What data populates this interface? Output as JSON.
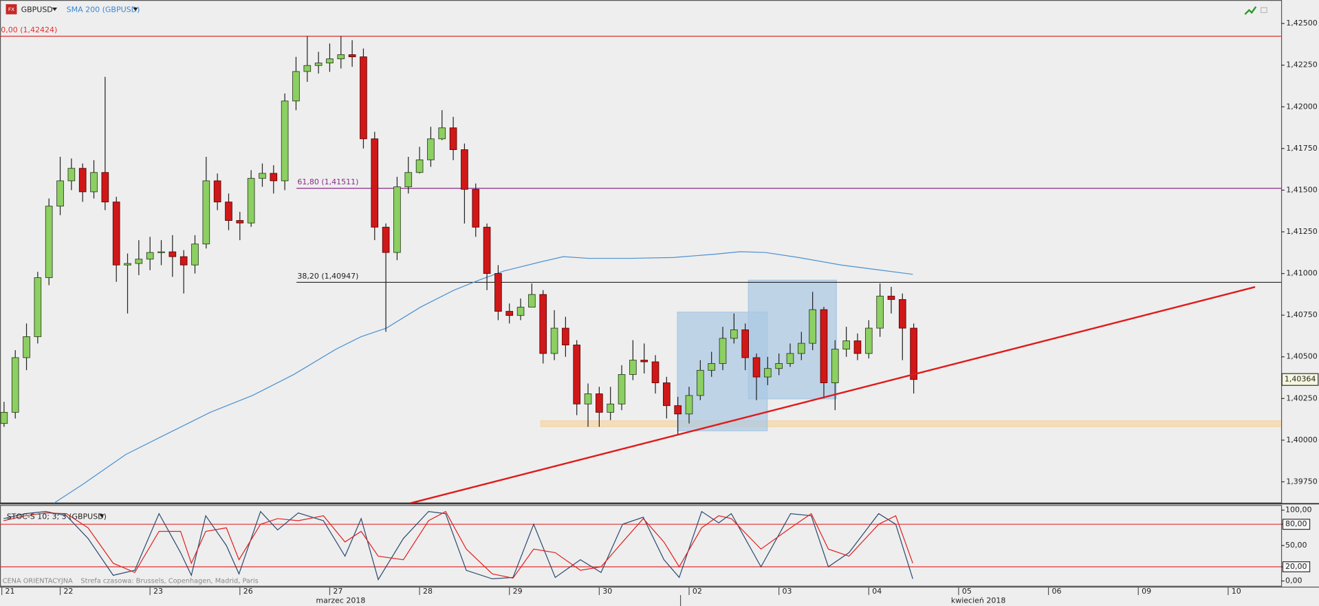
{
  "chart_data": [
    {
      "type": "candlestick",
      "symbol": "GBPUSD",
      "colors": {
        "up": "#8ccf62",
        "down": "#d01818",
        "background": "#eeeeee"
      },
      "xlim": [
        0.33,
        14.59
      ],
      "xticks": [
        {
          "value": 0.35,
          "label": "21"
        },
        {
          "value": 1,
          "label": "22"
        },
        {
          "value": 2,
          "label": "23"
        },
        {
          "value": 3,
          "label": "26"
        },
        {
          "value": 4,
          "label": "27"
        },
        {
          "value": 5,
          "label": "28"
        },
        {
          "value": 6,
          "label": "29"
        },
        {
          "value": 7,
          "label": "30"
        },
        {
          "value": 8,
          "label": "02"
        },
        {
          "value": 9,
          "label": "03"
        },
        {
          "value": 10,
          "label": "04"
        },
        {
          "value": 11,
          "label": "05"
        },
        {
          "value": 12,
          "label": "06"
        },
        {
          "value": 13,
          "label": "09"
        },
        {
          "value": 14,
          "label": "10"
        }
      ],
      "x_month_labels": [
        "marzec 2018",
        "kwiecień 2018"
      ],
      "ylim": [
        1.39621,
        1.42641
      ],
      "yticks": [
        {
          "value": 1.425,
          "label": "1,42500"
        },
        {
          "value": 1.4225,
          "label": "1,42250"
        },
        {
          "value": 1.42,
          "label": "1,42000"
        },
        {
          "value": 1.4175,
          "label": "1,41750"
        },
        {
          "value": 1.415,
          "label": "1,41500"
        },
        {
          "value": 1.4125,
          "label": "1,41250"
        },
        {
          "value": 1.41,
          "label": "1,41000"
        },
        {
          "value": 1.4075,
          "label": "1,40750"
        },
        {
          "value": 1.405,
          "label": "1,40500"
        },
        {
          "value": 1.4025,
          "label": "1,40250"
        },
        {
          "value": 1.4,
          "label": "1,40000"
        },
        {
          "value": 1.3975,
          "label": "1,39750"
        }
      ],
      "x": [
        0.375,
        0.5,
        0.625,
        0.75,
        0.875,
        1,
        1.125,
        1.25,
        1.375,
        1.5,
        1.625,
        1.75,
        1.875,
        2,
        2.125,
        2.25,
        2.375,
        2.5,
        2.625,
        2.75,
        2.875,
        3,
        3.125,
        3.25,
        3.375,
        3.5,
        3.625,
        3.75,
        3.875,
        4,
        4.125,
        4.25,
        4.375,
        4.5,
        4.625,
        4.75,
        4.875,
        5,
        5.125,
        5.25,
        5.375,
        5.5,
        5.625,
        5.75,
        5.875,
        6,
        6.125,
        6.25,
        6.375,
        6.5,
        6.625,
        6.75,
        6.875,
        7,
        7.125,
        7.25,
        7.375,
        7.5,
        7.625,
        7.75,
        7.875,
        8,
        8.125,
        8.25,
        8.375,
        8.5,
        8.625,
        8.75,
        8.875,
        9,
        9.125,
        9.25,
        9.375,
        9.5,
        9.625,
        9.75,
        9.875,
        10,
        10.125,
        10.25,
        10.375,
        10.5
      ],
      "ohlc": [
        [
          1.401,
          1.4023,
          1.4008,
          1.40167
        ],
        [
          1.40167,
          1.4054,
          1.4013,
          1.40495
        ],
        [
          1.40495,
          1.407,
          1.4042,
          1.40621
        ],
        [
          1.40621,
          1.4101,
          1.4058,
          1.40975
        ],
        [
          1.40975,
          1.4145,
          1.4093,
          1.41404
        ],
        [
          1.41404,
          1.417,
          1.4135,
          1.41556
        ],
        [
          1.41556,
          1.4169,
          1.415,
          1.41631
        ],
        [
          1.41631,
          1.4166,
          1.4143,
          1.4149
        ],
        [
          1.4149,
          1.4168,
          1.4145,
          1.41606
        ],
        [
          1.41606,
          1.4218,
          1.4138,
          1.41429
        ],
        [
          1.41429,
          1.4146,
          1.4095,
          1.41051
        ],
        [
          1.41051,
          1.4112,
          1.4076,
          1.4106
        ],
        [
          1.4106,
          1.412,
          1.4099,
          1.41086
        ],
        [
          1.41086,
          1.4122,
          1.4102,
          1.41126
        ],
        [
          1.41126,
          1.412,
          1.4105,
          1.4113
        ],
        [
          1.4113,
          1.4123,
          1.4098,
          1.41101
        ],
        [
          1.41101,
          1.4114,
          1.4088,
          1.41051
        ],
        [
          1.41051,
          1.4123,
          1.41,
          1.41177
        ],
        [
          1.41177,
          1.417,
          1.4115,
          1.41556
        ],
        [
          1.41556,
          1.416,
          1.4138,
          1.41429
        ],
        [
          1.41429,
          1.4148,
          1.4126,
          1.41318
        ],
        [
          1.41318,
          1.4137,
          1.412,
          1.41303
        ],
        [
          1.41303,
          1.4162,
          1.4128,
          1.41571
        ],
        [
          1.41571,
          1.4166,
          1.4152,
          1.41601
        ],
        [
          1.41601,
          1.4165,
          1.4148,
          1.41556
        ],
        [
          1.41556,
          1.4208,
          1.415,
          1.42035
        ],
        [
          1.42035,
          1.423,
          1.4198,
          1.42212
        ],
        [
          1.42212,
          1.42424,
          1.4215,
          1.42248
        ],
        [
          1.42248,
          1.4233,
          1.422,
          1.42263
        ],
        [
          1.42263,
          1.4238,
          1.4221,
          1.42288
        ],
        [
          1.42288,
          1.42424,
          1.4223,
          1.42313
        ],
        [
          1.42313,
          1.424,
          1.4224,
          1.423
        ],
        [
          1.423,
          1.4235,
          1.4175,
          1.41808
        ],
        [
          1.41808,
          1.4185,
          1.412,
          1.41278
        ],
        [
          1.41278,
          1.413,
          1.4065,
          1.41126
        ],
        [
          1.41126,
          1.4158,
          1.4108,
          1.4152
        ],
        [
          1.4152,
          1.417,
          1.4148,
          1.41606
        ],
        [
          1.41606,
          1.4176,
          1.416,
          1.41682
        ],
        [
          1.41682,
          1.4188,
          1.4164,
          1.41808
        ],
        [
          1.41808,
          1.4198,
          1.418,
          1.41874
        ],
        [
          1.41874,
          1.4194,
          1.4168,
          1.41743
        ],
        [
          1.41743,
          1.4178,
          1.413,
          1.41505
        ],
        [
          1.41505,
          1.4154,
          1.4122,
          1.41278
        ],
        [
          1.41278,
          1.413,
          1.409,
          1.41
        ],
        [
          1.41,
          1.4105,
          1.4072,
          1.40773
        ],
        [
          1.40773,
          1.4082,
          1.407,
          1.40748
        ],
        [
          1.40748,
          1.4085,
          1.4072,
          1.40798
        ],
        [
          1.40798,
          1.4094,
          1.4082,
          1.40874
        ],
        [
          1.40874,
          1.409,
          1.4046,
          1.4052
        ],
        [
          1.4052,
          1.4078,
          1.4048,
          1.40672
        ],
        [
          1.40672,
          1.4074,
          1.405,
          1.40571
        ],
        [
          1.40571,
          1.406,
          1.4015,
          1.40217
        ],
        [
          1.40217,
          1.4034,
          1.4008,
          1.40278
        ],
        [
          1.40278,
          1.4032,
          1.4008,
          1.40167
        ],
        [
          1.40167,
          1.4032,
          1.4012,
          1.40217
        ],
        [
          1.40217,
          1.4045,
          1.4018,
          1.40394
        ],
        [
          1.40394,
          1.406,
          1.4036,
          1.4048
        ],
        [
          1.4048,
          1.4058,
          1.404,
          1.4047
        ],
        [
          1.4047,
          1.4051,
          1.4028,
          1.40344
        ],
        [
          1.40344,
          1.4038,
          1.4013,
          1.40207
        ],
        [
          1.40207,
          1.4026,
          1.4003,
          1.40157
        ],
        [
          1.40157,
          1.4032,
          1.401,
          1.40268
        ],
        [
          1.40268,
          1.4048,
          1.4024,
          1.40419
        ],
        [
          1.40419,
          1.4053,
          1.4038,
          1.4046
        ],
        [
          1.4046,
          1.4068,
          1.4042,
          1.40611
        ],
        [
          1.40611,
          1.4076,
          1.4058,
          1.40662
        ],
        [
          1.40662,
          1.407,
          1.4042,
          1.40495
        ],
        [
          1.40495,
          1.4052,
          1.4024,
          1.40379
        ],
        [
          1.40379,
          1.405,
          1.4033,
          1.4043
        ],
        [
          1.4043,
          1.4052,
          1.4039,
          1.4046
        ],
        [
          1.4046,
          1.4058,
          1.4044,
          1.4052
        ],
        [
          1.4052,
          1.4065,
          1.4048,
          1.40581
        ],
        [
          1.40581,
          1.4089,
          1.4054,
          1.40783
        ],
        [
          1.40783,
          1.408,
          1.4025,
          1.40344
        ],
        [
          1.40344,
          1.406,
          1.4018,
          1.40546
        ],
        [
          1.40546,
          1.4068,
          1.405,
          1.40596
        ],
        [
          1.40596,
          1.4064,
          1.4048,
          1.4052
        ],
        [
          1.4052,
          1.4072,
          1.4049,
          1.40672
        ],
        [
          1.40672,
          1.4094,
          1.4062,
          1.40864
        ],
        [
          1.40864,
          1.4092,
          1.4076,
          1.40844
        ],
        [
          1.40844,
          1.4088,
          1.4048,
          1.40672
        ],
        [
          1.40672,
          1.407,
          1.4028,
          1.40364
        ]
      ],
      "overlays": [
        {
          "name": "SMA 200 (GBPUSD)",
          "color": "#4a90d0",
          "x": [
            0.93,
            1.26,
            1.73,
            2.2,
            2.67,
            3.14,
            3.6,
            4.07,
            4.35,
            4.63,
            5.01,
            5.38,
            5.66,
            5.94,
            6.32,
            6.6,
            6.88,
            7.35,
            7.82,
            8.29,
            8.57,
            8.85,
            9.22,
            9.69,
            10.06,
            10.49
          ],
          "values": [
            1.39622,
            1.39738,
            1.39914,
            1.40041,
            1.40167,
            1.40268,
            1.40394,
            1.40546,
            1.40621,
            1.40672,
            1.40798,
            1.40899,
            1.4096,
            1.41015,
            1.41066,
            1.41101,
            1.41091,
            1.41091,
            1.41096,
            1.41116,
            1.41131,
            1.41126,
            1.41096,
            1.41051,
            1.41025,
            1.40995
          ]
        }
      ],
      "levels": [
        {
          "label": "0,00 (1,42424)",
          "value": 1.42424,
          "color": "#e03030"
        },
        {
          "label": "61,80 (1,41511)",
          "value": 1.41511,
          "color": "#8a2a8a",
          "from": 3.63
        },
        {
          "label": "38,20 (1,40947)",
          "value": 1.40947,
          "color": "#222222",
          "from": 3.63
        }
      ],
      "trendline": {
        "color": "#e01a1a",
        "x": [
          4.9,
          14.3
        ],
        "values": [
          1.39622,
          1.40919
        ]
      },
      "zones": [
        {
          "color": "#f5d5a6",
          "x": [
            6.35,
            14.59
          ],
          "y": [
            1.40081,
            1.40116
          ]
        },
        {
          "color": "#a9c8e2",
          "x": [
            7.87,
            8.87
          ],
          "y": [
            1.40056,
            1.40768
          ]
        },
        {
          "color": "#a9c8e2",
          "x": [
            8.66,
            9.64
          ],
          "y": [
            1.40248,
            1.4096
          ]
        }
      ],
      "last_value": {
        "value": 1.40364,
        "label": "1,40364"
      },
      "footer": "CENA ORIENTACYJNA",
      "timezone": "Strefa czasowa: Brussels, Copenhagen, Madrid, Paris"
    },
    {
      "type": "line",
      "title": "STOC-S 10; 3; 3 (GBPUSD)",
      "xlim": [
        0.33,
        14.59
      ],
      "ylim": [
        -8,
        106
      ],
      "yticks": [
        {
          "value": 100,
          "label": "100,00"
        },
        {
          "value": 80,
          "label": "80,00"
        },
        {
          "value": 50,
          "label": "50,00"
        },
        {
          "value": 20,
          "label": "20,00"
        },
        {
          "value": 0,
          "label": "0,00"
        }
      ],
      "reference_lines": [
        80,
        20
      ],
      "reference_color": "#e03030",
      "x": [
        0.37,
        0.61,
        0.84,
        1.07,
        1.31,
        1.59,
        1.83,
        2.1,
        2.34,
        2.46,
        2.62,
        2.85,
        2.99,
        3.23,
        3.42,
        3.65,
        3.93,
        4.17,
        4.35,
        4.54,
        4.82,
        5.1,
        5.29,
        5.52,
        5.81,
        6.04,
        6.27,
        6.51,
        6.79,
        7.02,
        7.26,
        7.49,
        7.72,
        7.89,
        8.14,
        8.33,
        8.47,
        8.8,
        9.13,
        9.36,
        9.55,
        9.78,
        10.11,
        10.3,
        10.49
      ],
      "series": [
        {
          "color": "#2c4a70",
          "values": [
            88,
            95,
            98,
            92,
            60,
            8,
            15,
            95,
            40,
            8,
            92,
            50,
            10,
            98,
            72,
            96,
            85,
            35,
            88,
            2,
            60,
            98,
            95,
            15,
            3,
            5,
            80,
            5,
            30,
            12,
            80,
            90,
            30,
            5,
            98,
            82,
            95,
            20,
            95,
            92,
            20,
            40,
            95,
            80,
            3
          ]
        },
        {
          "color": "#e02020",
          "values": [
            85,
            92,
            96,
            95,
            75,
            25,
            12,
            70,
            70,
            25,
            70,
            75,
            30,
            80,
            88,
            85,
            92,
            55,
            70,
            35,
            30,
            85,
            98,
            45,
            10,
            4,
            45,
            40,
            15,
            20,
            55,
            88,
            55,
            20,
            75,
            92,
            88,
            45,
            75,
            95,
            45,
            35,
            80,
            92,
            25
          ]
        }
      ]
    }
  ]
}
